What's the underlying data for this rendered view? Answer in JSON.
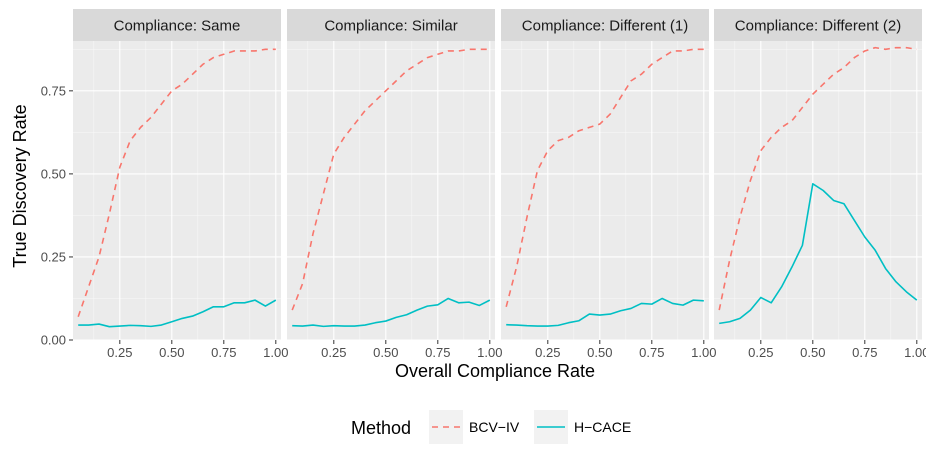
{
  "chart_data": {
    "type": "line",
    "xlabel": "Overall Compliance Rate",
    "ylabel": "True Discovery Rate",
    "xlim": [
      0.025,
      1.025
    ],
    "ylim": [
      0.0,
      0.9
    ],
    "x_ticks": [
      0.25,
      0.5,
      0.75,
      1.0
    ],
    "x_tick_labels": [
      "0.25",
      "0.50",
      "0.75",
      "1.00"
    ],
    "y_ticks": [
      0.0,
      0.25,
      0.5,
      0.75
    ],
    "y_tick_labels": [
      "0.00",
      "0.25",
      "0.50",
      "0.75"
    ],
    "legend": {
      "title": "Method",
      "position": "bottom",
      "entries": [
        {
          "label": "BCV−IV",
          "color": "#F8766D",
          "dash": "dashed"
        },
        {
          "label": "H−CACE",
          "color": "#00BFC4",
          "dash": "solid"
        }
      ]
    },
    "x": [
      0.05,
      0.1,
      0.15,
      0.2,
      0.25,
      0.3,
      0.35,
      0.4,
      0.45,
      0.5,
      0.55,
      0.6,
      0.65,
      0.7,
      0.75,
      0.8,
      0.85,
      0.9,
      0.95,
      1.0
    ],
    "panels": [
      {
        "title": "Compliance: Same",
        "series": [
          {
            "name": "BCV−IV",
            "values": [
              0.07,
              0.16,
              0.25,
              0.38,
              0.52,
              0.6,
              0.64,
              0.67,
              0.71,
              0.75,
              0.77,
              0.8,
              0.83,
              0.85,
              0.86,
              0.87,
              0.87,
              0.87,
              0.875,
              0.875
            ]
          },
          {
            "name": "H−CACE",
            "values": [
              0.045,
              0.045,
              0.048,
              0.04,
              0.042,
              0.044,
              0.043,
              0.041,
              0.045,
              0.055,
              0.065,
              0.072,
              0.085,
              0.1,
              0.1,
              0.112,
              0.112,
              0.12,
              0.102,
              0.12
            ]
          }
        ]
      },
      {
        "title": "Compliance: Similar",
        "series": [
          {
            "name": "BCV−IV",
            "values": [
              0.09,
              0.17,
              0.32,
              0.44,
              0.56,
              0.61,
              0.65,
              0.69,
              0.72,
              0.75,
              0.78,
              0.81,
              0.83,
              0.85,
              0.86,
              0.87,
              0.87,
              0.875,
              0.875,
              0.875
            ]
          },
          {
            "name": "H−CACE",
            "values": [
              0.043,
              0.042,
              0.045,
              0.041,
              0.043,
              0.042,
              0.042,
              0.045,
              0.052,
              0.057,
              0.068,
              0.076,
              0.09,
              0.102,
              0.106,
              0.125,
              0.112,
              0.114,
              0.104,
              0.12
            ]
          }
        ]
      },
      {
        "title": "Compliance: Different (1)",
        "series": [
          {
            "name": "BCV−IV",
            "values": [
              0.1,
              0.22,
              0.37,
              0.51,
              0.57,
              0.6,
              0.61,
              0.63,
              0.64,
              0.65,
              0.68,
              0.73,
              0.78,
              0.8,
              0.83,
              0.85,
              0.87,
              0.87,
              0.875,
              0.875
            ]
          },
          {
            "name": "H−CACE",
            "values": [
              0.046,
              0.045,
              0.043,
              0.042,
              0.042,
              0.044,
              0.052,
              0.058,
              0.078,
              0.075,
              0.078,
              0.088,
              0.095,
              0.11,
              0.108,
              0.125,
              0.11,
              0.105,
              0.12,
              0.118
            ]
          }
        ]
      },
      {
        "title": "Compliance: Different (2)",
        "series": [
          {
            "name": "BCV−IV",
            "values": [
              0.09,
              0.24,
              0.37,
              0.48,
              0.57,
              0.61,
              0.64,
              0.66,
              0.7,
              0.74,
              0.77,
              0.8,
              0.82,
              0.85,
              0.87,
              0.88,
              0.875,
              0.88,
              0.88,
              0.875
            ]
          },
          {
            "name": "H−CACE",
            "values": [
              0.05,
              0.055,
              0.065,
              0.09,
              0.128,
              0.112,
              0.16,
              0.22,
              0.285,
              0.47,
              0.45,
              0.42,
              0.41,
              0.36,
              0.31,
              0.27,
              0.215,
              0.175,
              0.145,
              0.12
            ]
          }
        ]
      }
    ]
  }
}
